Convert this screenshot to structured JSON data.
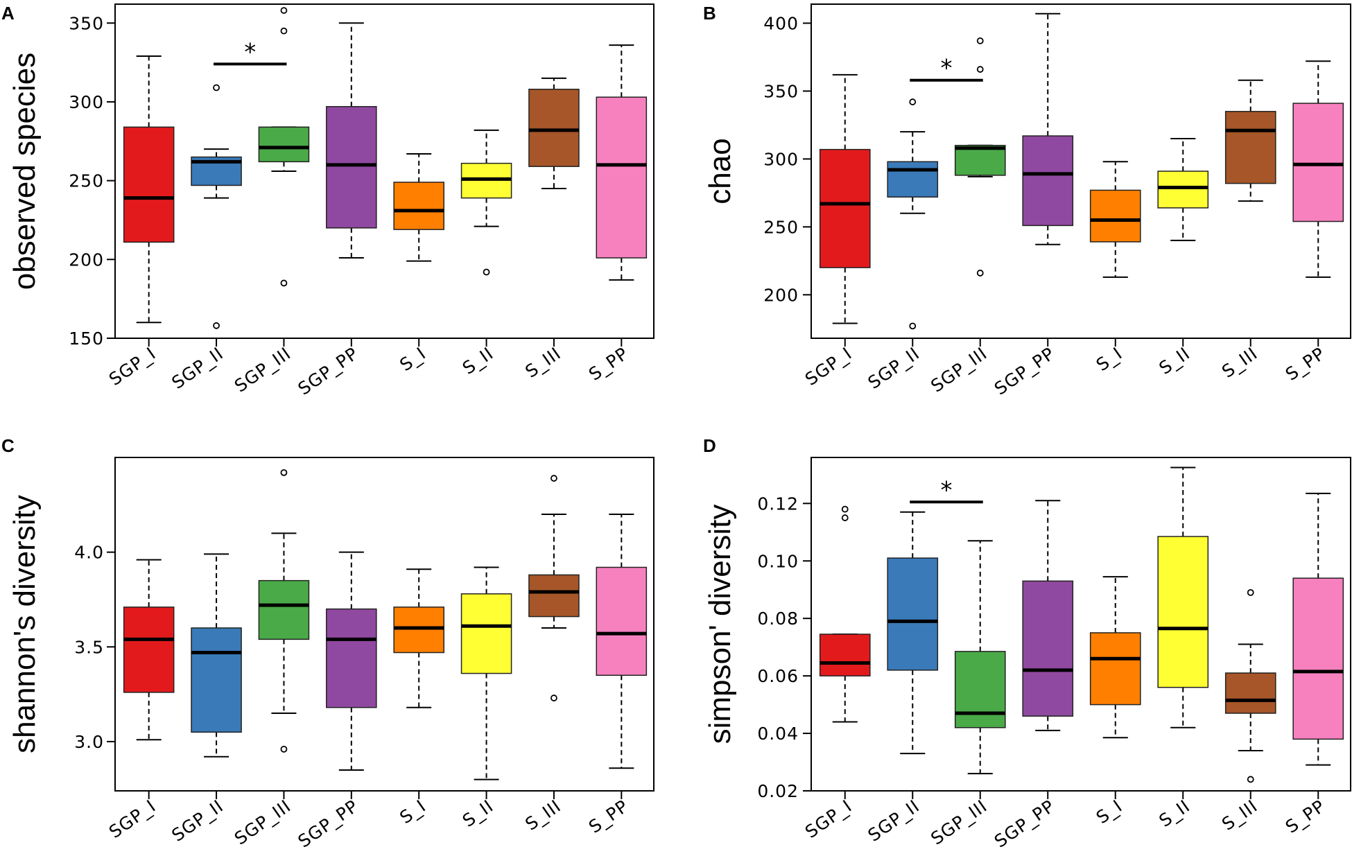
{
  "chart_data": [
    {
      "type": "boxplot",
      "panel": "A",
      "ylabel": "observed species",
      "ylim": [
        150,
        362
      ],
      "yticks": [
        150,
        200,
        250,
        300,
        350
      ],
      "ytick_labels": [
        "150",
        "200",
        "250",
        "300",
        "350"
      ],
      "categories": [
        "SGP_I",
        "SGP_II",
        "SGP_III",
        "SGP_PP",
        "S_I",
        "S_II",
        "S_III",
        "S_PP"
      ],
      "colors": [
        "#e31a1c",
        "#3a7ab8",
        "#4aaa48",
        "#9049a0",
        "#ff7f00",
        "#ffff33",
        "#a65628",
        "#f781bf"
      ],
      "boxes": [
        {
          "min": 160,
          "q1": 211,
          "median": 239,
          "q3": 284,
          "max": 329,
          "outliers": []
        },
        {
          "min": 239,
          "q1": 247,
          "median": 262,
          "q3": 265,
          "max": 270,
          "outliers": [
            309,
            158
          ]
        },
        {
          "min": 256,
          "q1": 262,
          "median": 271,
          "q3": 284,
          "max": 284,
          "outliers": [
            358,
            345,
            185
          ]
        },
        {
          "min": 201,
          "q1": 220,
          "median": 260,
          "q3": 297,
          "max": 350,
          "outliers": []
        },
        {
          "min": 199,
          "q1": 219,
          "median": 231,
          "q3": 249,
          "max": 267,
          "outliers": []
        },
        {
          "min": 221,
          "q1": 239,
          "median": 251,
          "q3": 261,
          "max": 282,
          "outliers": [
            192
          ]
        },
        {
          "min": 245,
          "q1": 259,
          "median": 282,
          "q3": 308,
          "max": 315,
          "outliers": []
        },
        {
          "min": 187,
          "q1": 201,
          "median": 260,
          "q3": 303,
          "max": 336,
          "outliers": []
        }
      ],
      "significance": [
        {
          "from": 1,
          "to": 2,
          "y": 324,
          "label": "*"
        }
      ]
    },
    {
      "type": "boxplot",
      "panel": "B",
      "ylabel": "chao",
      "ylim": [
        168,
        414
      ],
      "yticks": [
        200,
        250,
        300,
        350,
        400
      ],
      "ytick_labels": [
        "200",
        "250",
        "300",
        "350",
        "400"
      ],
      "categories": [
        "SGP_I",
        "SGP_II",
        "SGP_III",
        "SGP_PP",
        "S_I",
        "S_II",
        "S_III",
        "S_PP"
      ],
      "colors": [
        "#e31a1c",
        "#3a7ab8",
        "#4aaa48",
        "#9049a0",
        "#ff7f00",
        "#ffff33",
        "#a65628",
        "#f781bf"
      ],
      "boxes": [
        {
          "min": 179,
          "q1": 220,
          "median": 267,
          "q3": 307,
          "max": 362,
          "outliers": []
        },
        {
          "min": 260,
          "q1": 272,
          "median": 292,
          "q3": 298,
          "max": 320,
          "outliers": [
            342,
            177
          ]
        },
        {
          "min": 287,
          "q1": 288,
          "median": 308,
          "q3": 310,
          "max": 310,
          "outliers": [
            387,
            366,
            216
          ]
        },
        {
          "min": 237,
          "q1": 251,
          "median": 289,
          "q3": 317,
          "max": 407,
          "outliers": []
        },
        {
          "min": 213,
          "q1": 239,
          "median": 255,
          "q3": 277,
          "max": 298,
          "outliers": []
        },
        {
          "min": 240,
          "q1": 264,
          "median": 279,
          "q3": 291,
          "max": 315,
          "outliers": []
        },
        {
          "min": 269,
          "q1": 282,
          "median": 321,
          "q3": 335,
          "max": 358,
          "outliers": []
        },
        {
          "min": 213,
          "q1": 254,
          "median": 296,
          "q3": 341,
          "max": 372,
          "outliers": []
        }
      ],
      "significance": [
        {
          "from": 1,
          "to": 2,
          "y": 358,
          "label": "*"
        }
      ]
    },
    {
      "type": "boxplot",
      "panel": "C",
      "ylabel": "shannon's diversity",
      "ylim": [
        2.74,
        4.5
      ],
      "yticks": [
        3.0,
        3.5,
        4.0
      ],
      "ytick_labels": [
        "3.0",
        "3.5",
        "4.0"
      ],
      "categories": [
        "SGP_I",
        "SGP_II",
        "SGP_III",
        "SGP_PP",
        "S_I",
        "S_II",
        "S_III",
        "S_PP"
      ],
      "colors": [
        "#e31a1c",
        "#3a7ab8",
        "#4aaa48",
        "#9049a0",
        "#ff7f00",
        "#ffff33",
        "#a65628",
        "#f781bf"
      ],
      "boxes": [
        {
          "min": 3.01,
          "q1": 3.26,
          "median": 3.54,
          "q3": 3.71,
          "max": 3.96,
          "outliers": []
        },
        {
          "min": 2.92,
          "q1": 3.05,
          "median": 3.47,
          "q3": 3.6,
          "max": 3.99,
          "outliers": []
        },
        {
          "min": 3.15,
          "q1": 3.54,
          "median": 3.72,
          "q3": 3.85,
          "max": 4.1,
          "outliers": [
            4.42,
            2.96
          ]
        },
        {
          "min": 2.85,
          "q1": 3.18,
          "median": 3.54,
          "q3": 3.7,
          "max": 4.0,
          "outliers": []
        },
        {
          "min": 3.18,
          "q1": 3.47,
          "median": 3.6,
          "q3": 3.71,
          "max": 3.91,
          "outliers": []
        },
        {
          "min": 2.8,
          "q1": 3.36,
          "median": 3.61,
          "q3": 3.78,
          "max": 3.92,
          "outliers": []
        },
        {
          "min": 3.6,
          "q1": 3.66,
          "median": 3.79,
          "q3": 3.88,
          "max": 4.2,
          "outliers": [
            4.39,
            3.23
          ]
        },
        {
          "min": 2.86,
          "q1": 3.35,
          "median": 3.57,
          "q3": 3.92,
          "max": 4.2,
          "outliers": []
        }
      ],
      "significance": []
    },
    {
      "type": "boxplot",
      "panel": "D",
      "ylabel": "simpson' diversity",
      "ylim": [
        0.02,
        0.136
      ],
      "yticks": [
        0.02,
        0.04,
        0.06,
        0.08,
        0.1,
        0.12
      ],
      "ytick_labels": [
        "0.02",
        "0.04",
        "0.06",
        "0.08",
        "0.10",
        "0.12"
      ],
      "categories": [
        "SGP_I",
        "SGP_II",
        "SGP_III",
        "SGP_PP",
        "S_I",
        "S_II",
        "S_III",
        "S_PP"
      ],
      "colors": [
        "#e31a1c",
        "#3a7ab8",
        "#4aaa48",
        "#9049a0",
        "#ff7f00",
        "#ffff33",
        "#a65628",
        "#f781bf"
      ],
      "boxes": [
        {
          "min": 0.044,
          "q1": 0.06,
          "median": 0.0645,
          "q3": 0.0745,
          "max": 0.0745,
          "outliers": [
            0.118,
            0.115
          ]
        },
        {
          "min": 0.033,
          "q1": 0.062,
          "median": 0.079,
          "q3": 0.101,
          "max": 0.117,
          "outliers": []
        },
        {
          "min": 0.026,
          "q1": 0.042,
          "median": 0.047,
          "q3": 0.0685,
          "max": 0.107,
          "outliers": []
        },
        {
          "min": 0.041,
          "q1": 0.046,
          "median": 0.062,
          "q3": 0.093,
          "max": 0.121,
          "outliers": []
        },
        {
          "min": 0.0385,
          "q1": 0.05,
          "median": 0.066,
          "q3": 0.075,
          "max": 0.0945,
          "outliers": []
        },
        {
          "min": 0.042,
          "q1": 0.056,
          "median": 0.0765,
          "q3": 0.1085,
          "max": 0.1325,
          "outliers": []
        },
        {
          "min": 0.034,
          "q1": 0.047,
          "median": 0.0515,
          "q3": 0.061,
          "max": 0.071,
          "outliers": [
            0.089,
            0.024
          ]
        },
        {
          "min": 0.029,
          "q1": 0.038,
          "median": 0.0615,
          "q3": 0.094,
          "max": 0.1235,
          "outliers": []
        }
      ],
      "significance": [
        {
          "from": 1,
          "to": 2,
          "y": 0.1205,
          "label": "*"
        }
      ]
    }
  ]
}
